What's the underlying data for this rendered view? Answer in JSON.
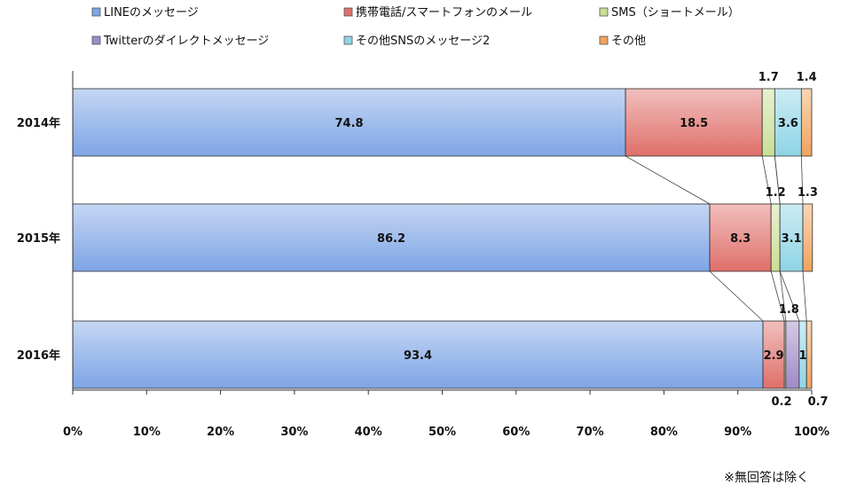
{
  "chart_data": {
    "type": "bar",
    "orientation": "horizontal",
    "stacked": "percent",
    "categories": [
      "2014年",
      "2015年",
      "2016年"
    ],
    "series": [
      {
        "name": "LINEのメッセージ",
        "values": [
          74.8,
          86.2,
          93.4
        ],
        "color": "#7ea5e5"
      },
      {
        "name": "携帯電話/スマートフォンのメール",
        "values": [
          18.5,
          8.3,
          2.9
        ],
        "color": "#e0706b"
      },
      {
        "name": "SMS（ショートメール）",
        "values": [
          1.7,
          1.2,
          0.2
        ],
        "color": "#c9df96"
      },
      {
        "name": "Twitterのダイレクトメッセージ",
        "values": [
          0.0,
          0.0,
          1.8
        ],
        "color": "#9f8ac7"
      },
      {
        "name": "その他SNSのメッセージ2",
        "values": [
          3.6,
          3.1,
          1.0
        ],
        "color": "#8fd4e6"
      },
      {
        "name": "その他",
        "values": [
          1.4,
          1.3,
          0.7
        ],
        "color": "#f0a35e"
      }
    ],
    "data_labels": [
      [
        "74.8",
        "18.5",
        "1.7",
        "",
        "3.6",
        "1.4"
      ],
      [
        "86.2",
        "8.3",
        "1.2",
        "",
        "3.1",
        "1.3"
      ],
      [
        "93.4",
        "2.9",
        "0.2",
        "1.8",
        "1",
        "0.7"
      ]
    ],
    "x_ticks": [
      "0%",
      "10%",
      "20%",
      "30%",
      "40%",
      "50%",
      "60%",
      "70%",
      "80%",
      "90%",
      "100%"
    ],
    "xlim": [
      0,
      100
    ],
    "grid": false,
    "legend_position": "top",
    "series_lines": true,
    "title": "",
    "xlabel": "",
    "ylabel": ""
  },
  "note": "※無回答は除く"
}
